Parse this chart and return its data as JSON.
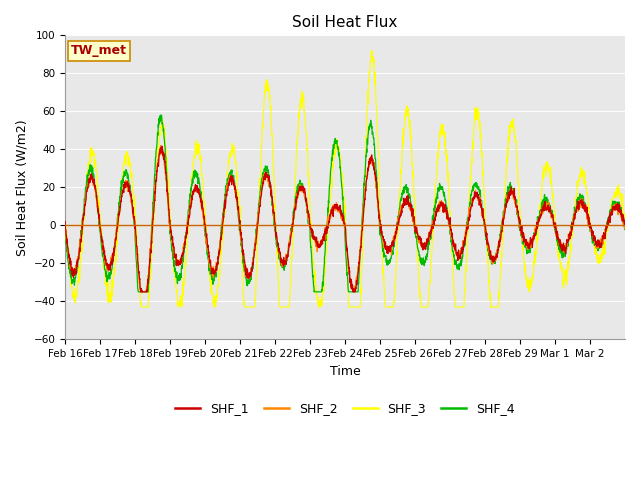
{
  "title": "Soil Heat Flux",
  "ylabel": "Soil Heat Flux (W/m2)",
  "xlabel": "Time",
  "ylim": [
    -60,
    100
  ],
  "yticks": [
    -60,
    -40,
    -20,
    0,
    20,
    40,
    60,
    80,
    100
  ],
  "annotation": "TW_met",
  "bg_color": "#e8e8e8",
  "legend_labels": [
    "SHF_1",
    "SHF_2",
    "SHF_3",
    "SHF_4"
  ],
  "legend_colors": [
    "#cc0000",
    "#ff8800",
    "#ffff00",
    "#00bb00"
  ],
  "line_colors": [
    "#cc0000",
    "#ff8800",
    "#ffff00",
    "#00bb00"
  ],
  "xtick_labels": [
    "Feb 16",
    "Feb 17",
    "Feb 18",
    "Feb 19",
    "Feb 20",
    "Feb 21",
    "Feb 22",
    "Feb 23",
    "Feb 24",
    "Feb 25",
    "Feb 26",
    "Feb 27",
    "Feb 28",
    "Feb 29",
    "Mar 1",
    "Mar 2"
  ],
  "n_days": 16,
  "pts_per_day": 144,
  "title_fontsize": 11,
  "axis_label_fontsize": 9,
  "tick_fontsize": 7.5,
  "legend_fontsize": 9,
  "annotation_fontsize": 9
}
